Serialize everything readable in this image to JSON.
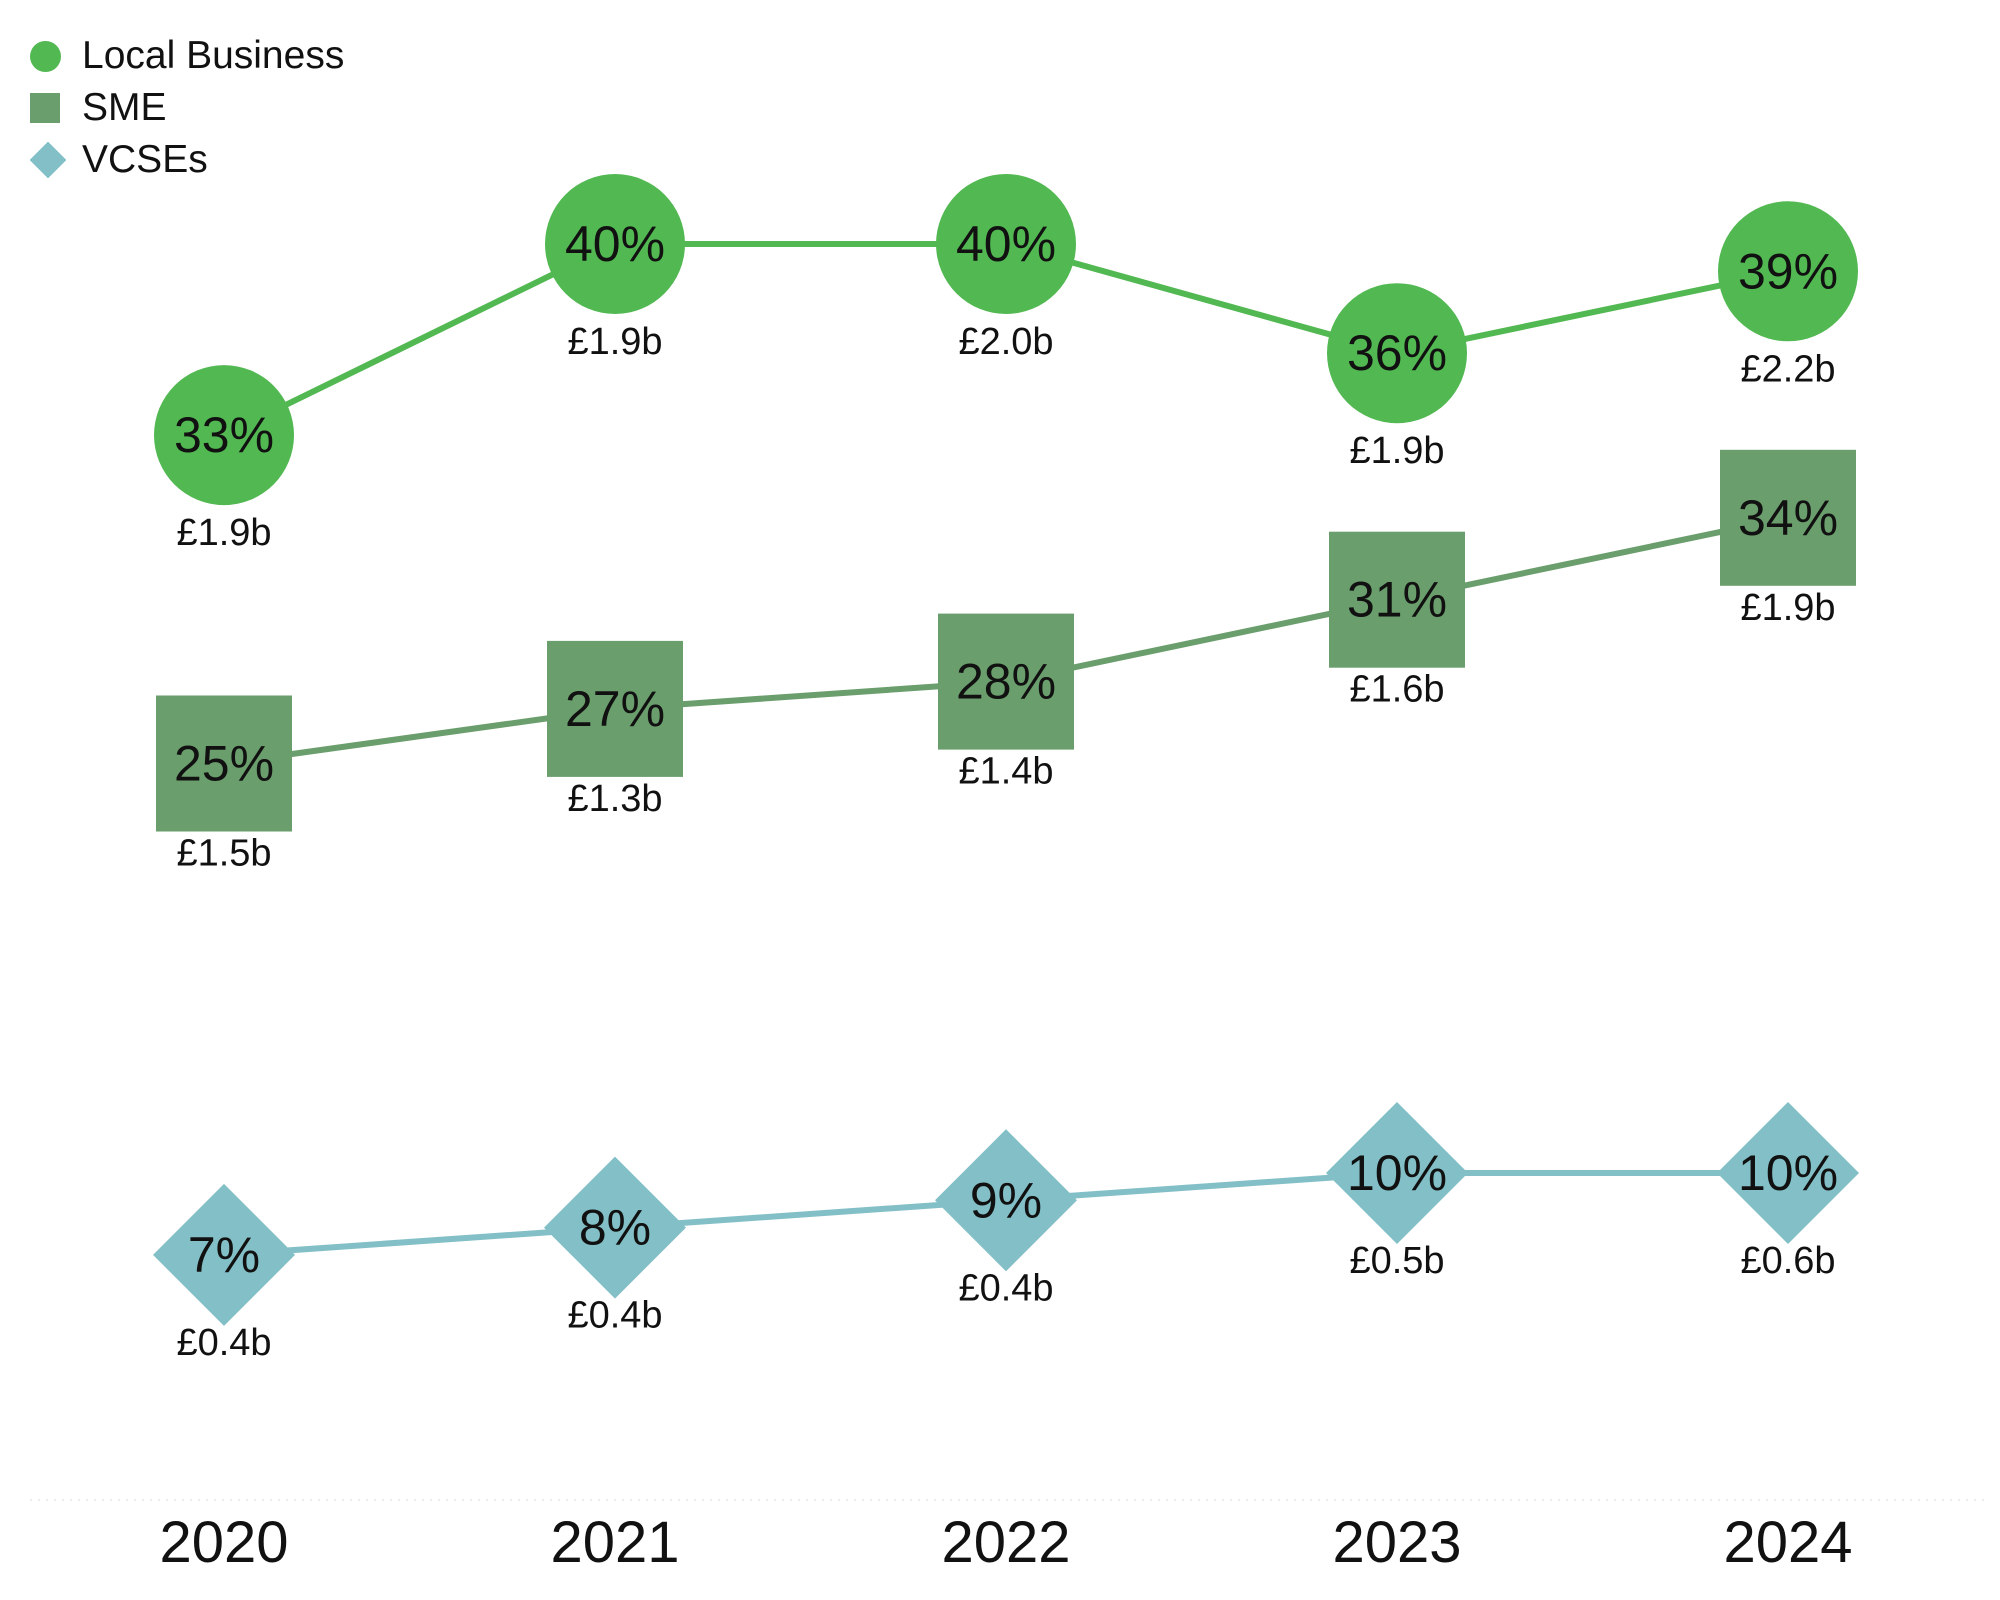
{
  "chart_data": {
    "type": "line",
    "categories": [
      "2020",
      "2021",
      "2022",
      "2023",
      "2024"
    ],
    "series": [
      {
        "name": "Local Business",
        "marker": "circle",
        "color": "#52b852",
        "values": [
          33,
          40,
          40,
          36,
          39
        ],
        "point_labels": [
          "33%",
          "40%",
          "40%",
          "36%",
          "39%"
        ],
        "value_labels": [
          "£1.9b",
          "£1.9b",
          "£2.0b",
          "£1.9b",
          "£2.2b"
        ]
      },
      {
        "name": "SME",
        "marker": "square",
        "color": "#6a9e6c",
        "values": [
          25,
          27,
          28,
          31,
          34
        ],
        "point_labels": [
          "25%",
          "27%",
          "28%",
          "31%",
          "34%"
        ],
        "value_labels": [
          "£1.5b",
          "£1.3b",
          "£1.4b",
          "£1.6b",
          "£1.9b"
        ]
      },
      {
        "name": "VCSEs",
        "marker": "diamond",
        "color": "#82bfc6",
        "values": [
          7,
          8,
          9,
          10,
          10
        ],
        "point_labels": [
          "7%",
          "8%",
          "9%",
          "10%",
          "10%"
        ],
        "value_labels": [
          "£0.4b",
          "£0.4b",
          "£0.4b",
          "£0.5b",
          "£0.6b"
        ]
      }
    ],
    "legend": "top-left",
    "grid": false,
    "title": "",
    "xlabel": "",
    "ylabel": ""
  }
}
